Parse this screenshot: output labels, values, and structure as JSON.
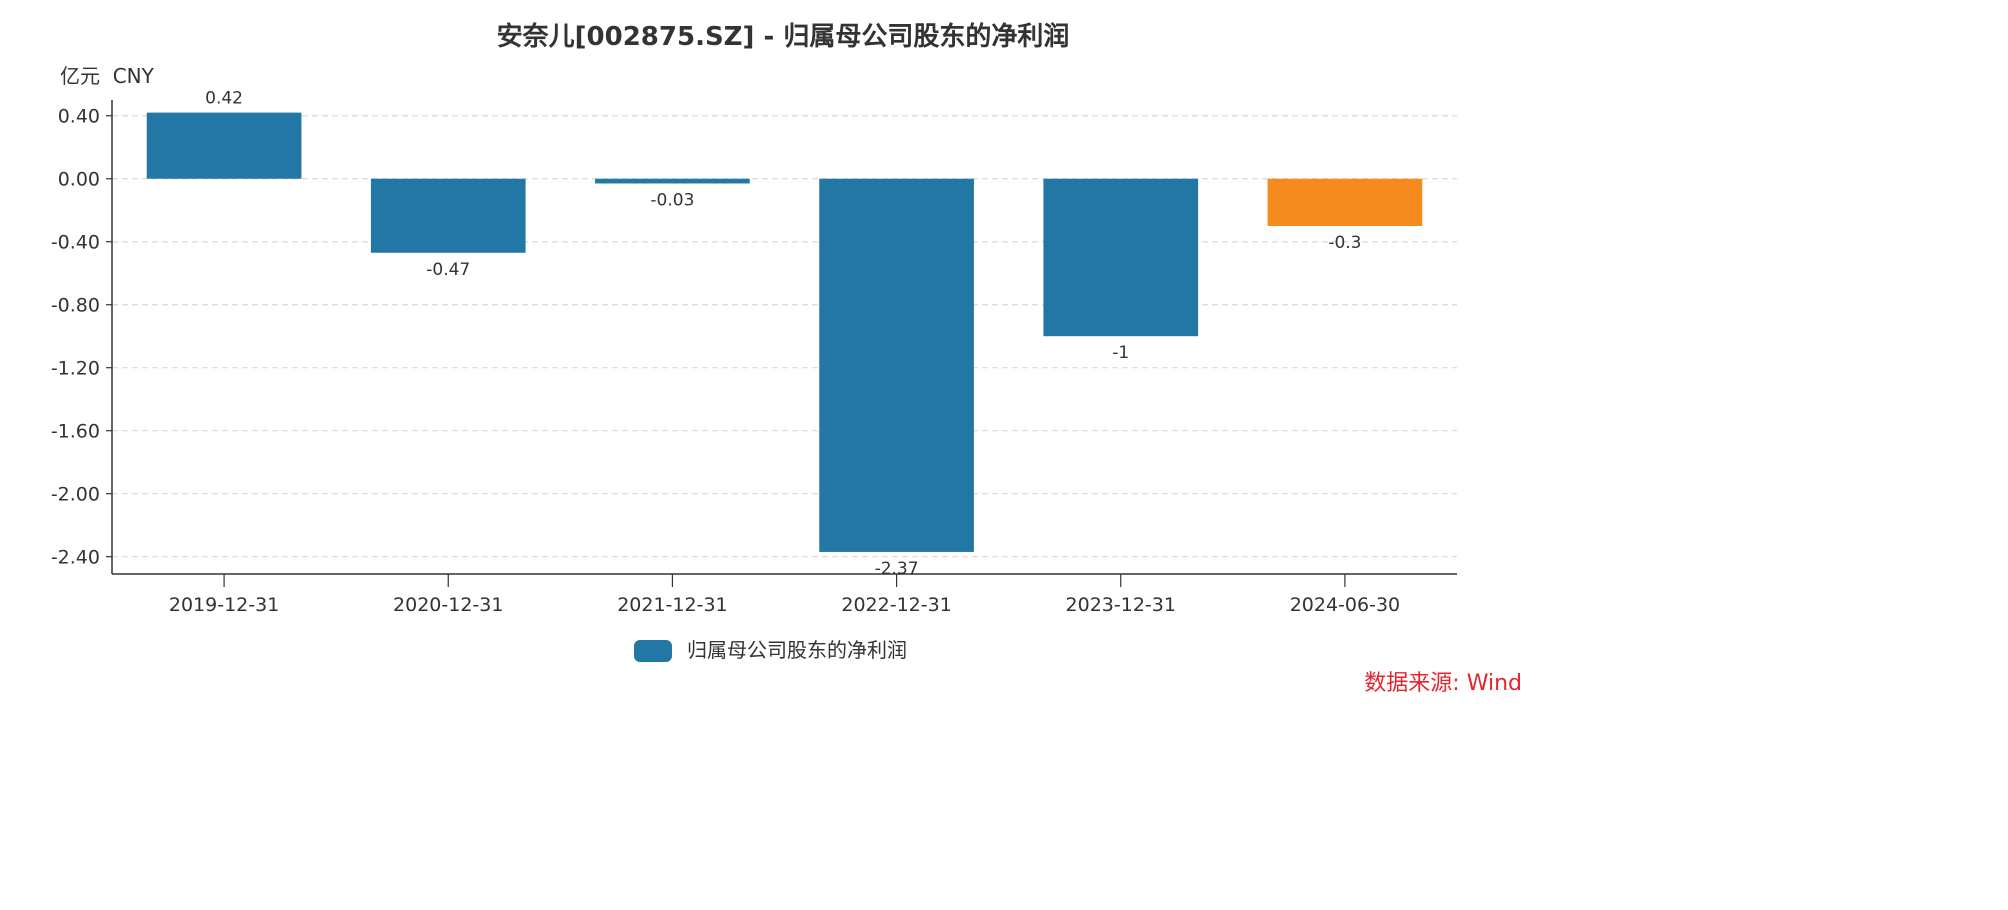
{
  "chart_data": {
    "type": "bar",
    "title": "安奈儿[002875.SZ] - 归属母公司股东的净利润",
    "unit_label": "亿元  CNY",
    "categories": [
      "2019-12-31",
      "2020-12-31",
      "2021-12-31",
      "2022-12-31",
      "2023-12-31",
      "2024-06-30"
    ],
    "series": [
      {
        "name": "归属母公司股东的净利润",
        "values": [
          0.42,
          -0.47,
          -0.03,
          -2.37,
          -1,
          -0.3
        ],
        "data_labels": [
          "0.42",
          "-0.47",
          "-0.03",
          "-2.37",
          "-1",
          "-0.3"
        ],
        "colors": [
          "#2277a4",
          "#2277a4",
          "#2277a4",
          "#2277a4",
          "#2277a4",
          "#f58a1f"
        ]
      }
    ],
    "y_ticks": [
      0.4,
      0.0,
      -0.4,
      -0.8,
      -1.2,
      -1.6,
      -2.0,
      -2.4
    ],
    "y_tick_labels": [
      "0.40",
      "0.00",
      "-0.40",
      "-0.80",
      "-1.20",
      "-1.60",
      "-2.00",
      "-2.40"
    ],
    "ylim": [
      -2.51,
      0.5
    ],
    "grid": true,
    "legend_position": "bottom-center",
    "source": "数据来源: Wind"
  }
}
